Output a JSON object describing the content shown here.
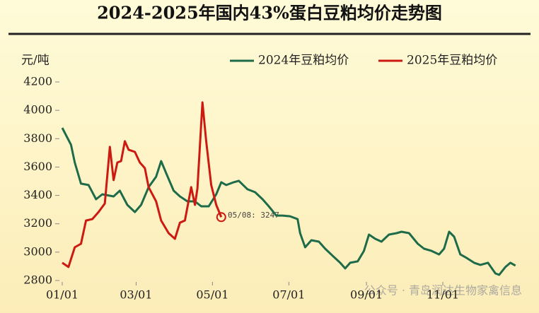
{
  "chart_data": {
    "type": "line",
    "title": "2024-2025年国内43%蛋白豆粕均价走势图",
    "y_label": "元/吨",
    "annotation": "05/08: 3247",
    "watermark": "公众号 · 青岛润达生物家禽信息",
    "xlim": [
      0,
      365
    ],
    "xticks": [
      {
        "value": 0,
        "label": "01/01"
      },
      {
        "value": 59,
        "label": "03/01"
      },
      {
        "value": 120,
        "label": "05/01"
      },
      {
        "value": 181,
        "label": "07/01"
      },
      {
        "value": 243,
        "label": "09/01"
      },
      {
        "value": 304,
        "label": "11/01"
      }
    ],
    "ylim": [
      2800,
      4200
    ],
    "yticks": [
      2800,
      3000,
      3200,
      3400,
      3600,
      3800,
      4000,
      4200
    ],
    "legend": "top-right",
    "series": [
      {
        "name": "2024年豆粕均价",
        "color": "#1e6b4a",
        "x": [
          0,
          7,
          10,
          15,
          21,
          27,
          32,
          41,
          46,
          52,
          58,
          63,
          69,
          75,
          79,
          83,
          89,
          94,
          100,
          106,
          111,
          117,
          123,
          127,
          131,
          137,
          141,
          148,
          154,
          160,
          165,
          171,
          176,
          182,
          188,
          190,
          194,
          199,
          205,
          210,
          216,
          222,
          226,
          230,
          236,
          241,
          245,
          250,
          255,
          261,
          267,
          271,
          277,
          284,
          289,
          295,
          301,
          305,
          309,
          313,
          318,
          323,
          329,
          334,
          340,
          346,
          349,
          354,
          358,
          362
        ],
        "values": [
          3876,
          3757,
          3632,
          3483,
          3473,
          3373,
          3408,
          3393,
          3433,
          3333,
          3283,
          3333,
          3458,
          3532,
          3642,
          3557,
          3433,
          3393,
          3358,
          3358,
          3323,
          3323,
          3408,
          3493,
          3473,
          3493,
          3503,
          3443,
          3423,
          3373,
          3323,
          3258,
          3258,
          3253,
          3233,
          3134,
          3034,
          3084,
          3074,
          3024,
          2974,
          2925,
          2885,
          2925,
          2935,
          3009,
          3124,
          3094,
          3074,
          3124,
          3134,
          3144,
          3134,
          3059,
          3024,
          3009,
          2984,
          3024,
          3144,
          3109,
          2984,
          2959,
          2925,
          2910,
          2925,
          2850,
          2840,
          2895,
          2925,
          2905
        ]
      },
      {
        "name": "2025年豆粕均价",
        "color": "#cc1a12",
        "x": [
          0,
          5,
          10,
          15,
          19,
          24,
          29,
          34,
          38,
          41,
          44,
          47,
          50,
          53,
          58,
          62,
          66,
          69,
          75,
          79,
          85,
          90,
          94,
          98,
          103,
          106,
          108,
          112,
          115,
          119,
          123,
          127
        ],
        "values": [
          2925,
          2895,
          3034,
          3059,
          3223,
          3233,
          3283,
          3343,
          3742,
          3508,
          3632,
          3642,
          3782,
          3722,
          3707,
          3632,
          3592,
          3458,
          3358,
          3223,
          3134,
          3094,
          3208,
          3223,
          3458,
          3333,
          3448,
          4056,
          3782,
          3473,
          3333,
          3247
        ]
      }
    ]
  }
}
